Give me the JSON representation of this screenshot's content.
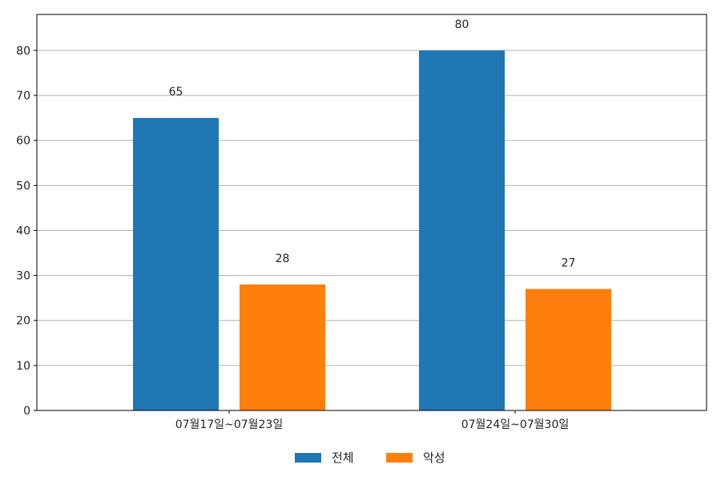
{
  "chart_data": {
    "type": "bar",
    "categories": [
      "07월17일~07월23일",
      "07월24일~07월30일"
    ],
    "series": [
      {
        "name": "전체",
        "values": [
          65,
          80
        ],
        "color": "#1f77b4"
      },
      {
        "name": "악성",
        "values": [
          28,
          27
        ],
        "color": "#ff7f0e"
      }
    ],
    "ylim": [
      0,
      88
    ],
    "yticks": [
      0,
      10,
      20,
      30,
      40,
      50,
      60,
      70,
      80
    ],
    "grid": "horizontal",
    "legend_position": "bottom-center",
    "data_labels": true
  }
}
